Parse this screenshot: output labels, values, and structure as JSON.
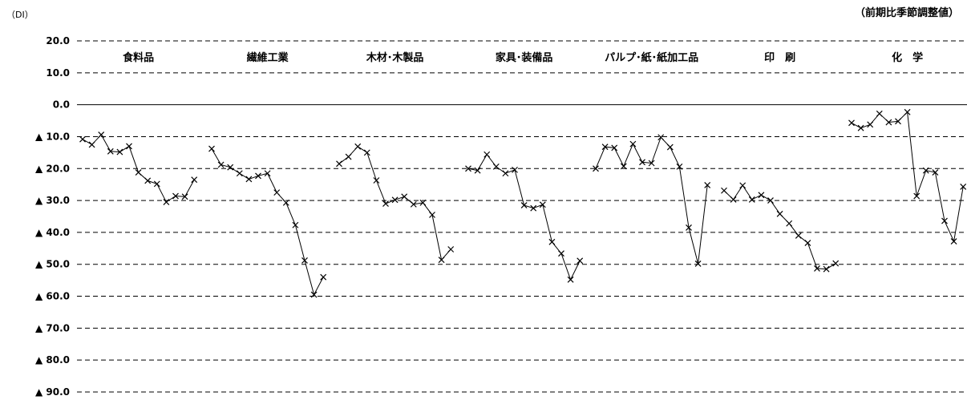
{
  "chart_data": {
    "type": "line",
    "yunit": "（DI）",
    "note": "（前期比季節調整値）",
    "ylim": [
      -90,
      20
    ],
    "yticks": [
      20,
      10,
      0,
      -10,
      -20,
      -30,
      -40,
      -50,
      -60,
      -70,
      -80,
      -90
    ],
    "ytick_labels": [
      "20.0",
      "10.0",
      "0.0",
      "▲ 10.0",
      "▲ 20.0",
      "▲ 30.0",
      "▲ 40.0",
      "▲ 50.0",
      "▲ 60.0",
      "▲ 70.0",
      "▲ 80.0",
      "▲ 90.0"
    ],
    "grid": true,
    "marker": "x",
    "series": [
      {
        "name": "食料品",
        "values": [
          -10.8,
          -12.5,
          -9.4,
          -14.6,
          -14.8,
          -13.0,
          -21.2,
          -23.8,
          -24.8,
          -30.5,
          -28.6,
          -28.8,
          -23.5
        ]
      },
      {
        "name": "繊維工業",
        "values": [
          -13.8,
          -18.8,
          -19.6,
          -21.5,
          -23.3,
          -22.3,
          -21.5,
          -27.5,
          -30.7,
          -37.7,
          -48.8,
          -59.5,
          -54.0
        ]
      },
      {
        "name": "木材･木製品",
        "values": [
          -18.5,
          -16.3,
          -13.1,
          -15.0,
          -23.7,
          -31.0,
          -29.8,
          -28.8,
          -31.2,
          -30.7,
          -34.5,
          -48.6,
          -45.3
        ]
      },
      {
        "name": "家具･装備品",
        "values": [
          -20.0,
          -20.6,
          -15.6,
          -19.4,
          -21.5,
          -20.4,
          -31.5,
          -32.4,
          -31.3,
          -43.0,
          -46.6,
          -54.8,
          -48.9
        ]
      },
      {
        "name": "パルプ･紙･紙加工品",
        "values": [
          -20.0,
          -13.2,
          -13.5,
          -19.3,
          -12.3,
          -18.0,
          -18.3,
          -10.2,
          -13.3,
          -19.4,
          -38.5,
          -49.8,
          -25.2
        ]
      },
      {
        "name": "印　刷",
        "values": [
          -26.9,
          -29.7,
          -25.3,
          -29.7,
          -28.3,
          -30.0,
          -34.2,
          -37.2,
          -41.0,
          -43.3,
          -51.3,
          -51.5,
          -49.7
        ]
      },
      {
        "name": "化　学",
        "values": [
          -5.7,
          -7.3,
          -6.2,
          -2.8,
          -5.5,
          -5.2,
          -2.3,
          -28.6,
          -20.6,
          -21.2,
          -36.4,
          -42.8,
          -25.7
        ]
      }
    ]
  }
}
